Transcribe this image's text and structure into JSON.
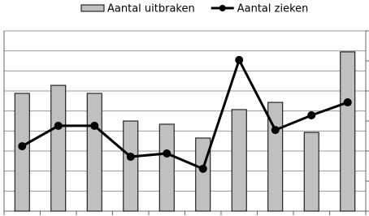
{
  "chart_data": {
    "type": "bar",
    "categories": [
      null,
      null,
      null,
      null,
      null,
      null,
      null,
      null,
      null,
      null
    ],
    "series": [
      {
        "name": "Aantal uitbraken",
        "color": "#c0c0c0",
        "type": "bar",
        "values": [
          5.88,
          6.28,
          5.88,
          4.5,
          4.34,
          3.65,
          5.07,
          5.43,
          3.93,
          7.95
        ]
      },
      {
        "name": "Aantal zieken",
        "color": "#000000",
        "type": "line",
        "axis": "y2",
        "values": [
          2.16,
          2.84,
          2.84,
          1.81,
          1.92,
          1.41,
          5.03,
          2.7,
          3.19,
          3.62
        ]
      }
    ],
    "ylim": [
      0,
      9
    ],
    "yticks": [
      0,
      1,
      2,
      3,
      4,
      5,
      6,
      7,
      8,
      9
    ],
    "y2lim": [
      0,
      6
    ],
    "y2ticks": [
      0,
      1,
      2,
      3,
      4,
      5,
      6
    ],
    "grid": true,
    "legend": "top"
  }
}
